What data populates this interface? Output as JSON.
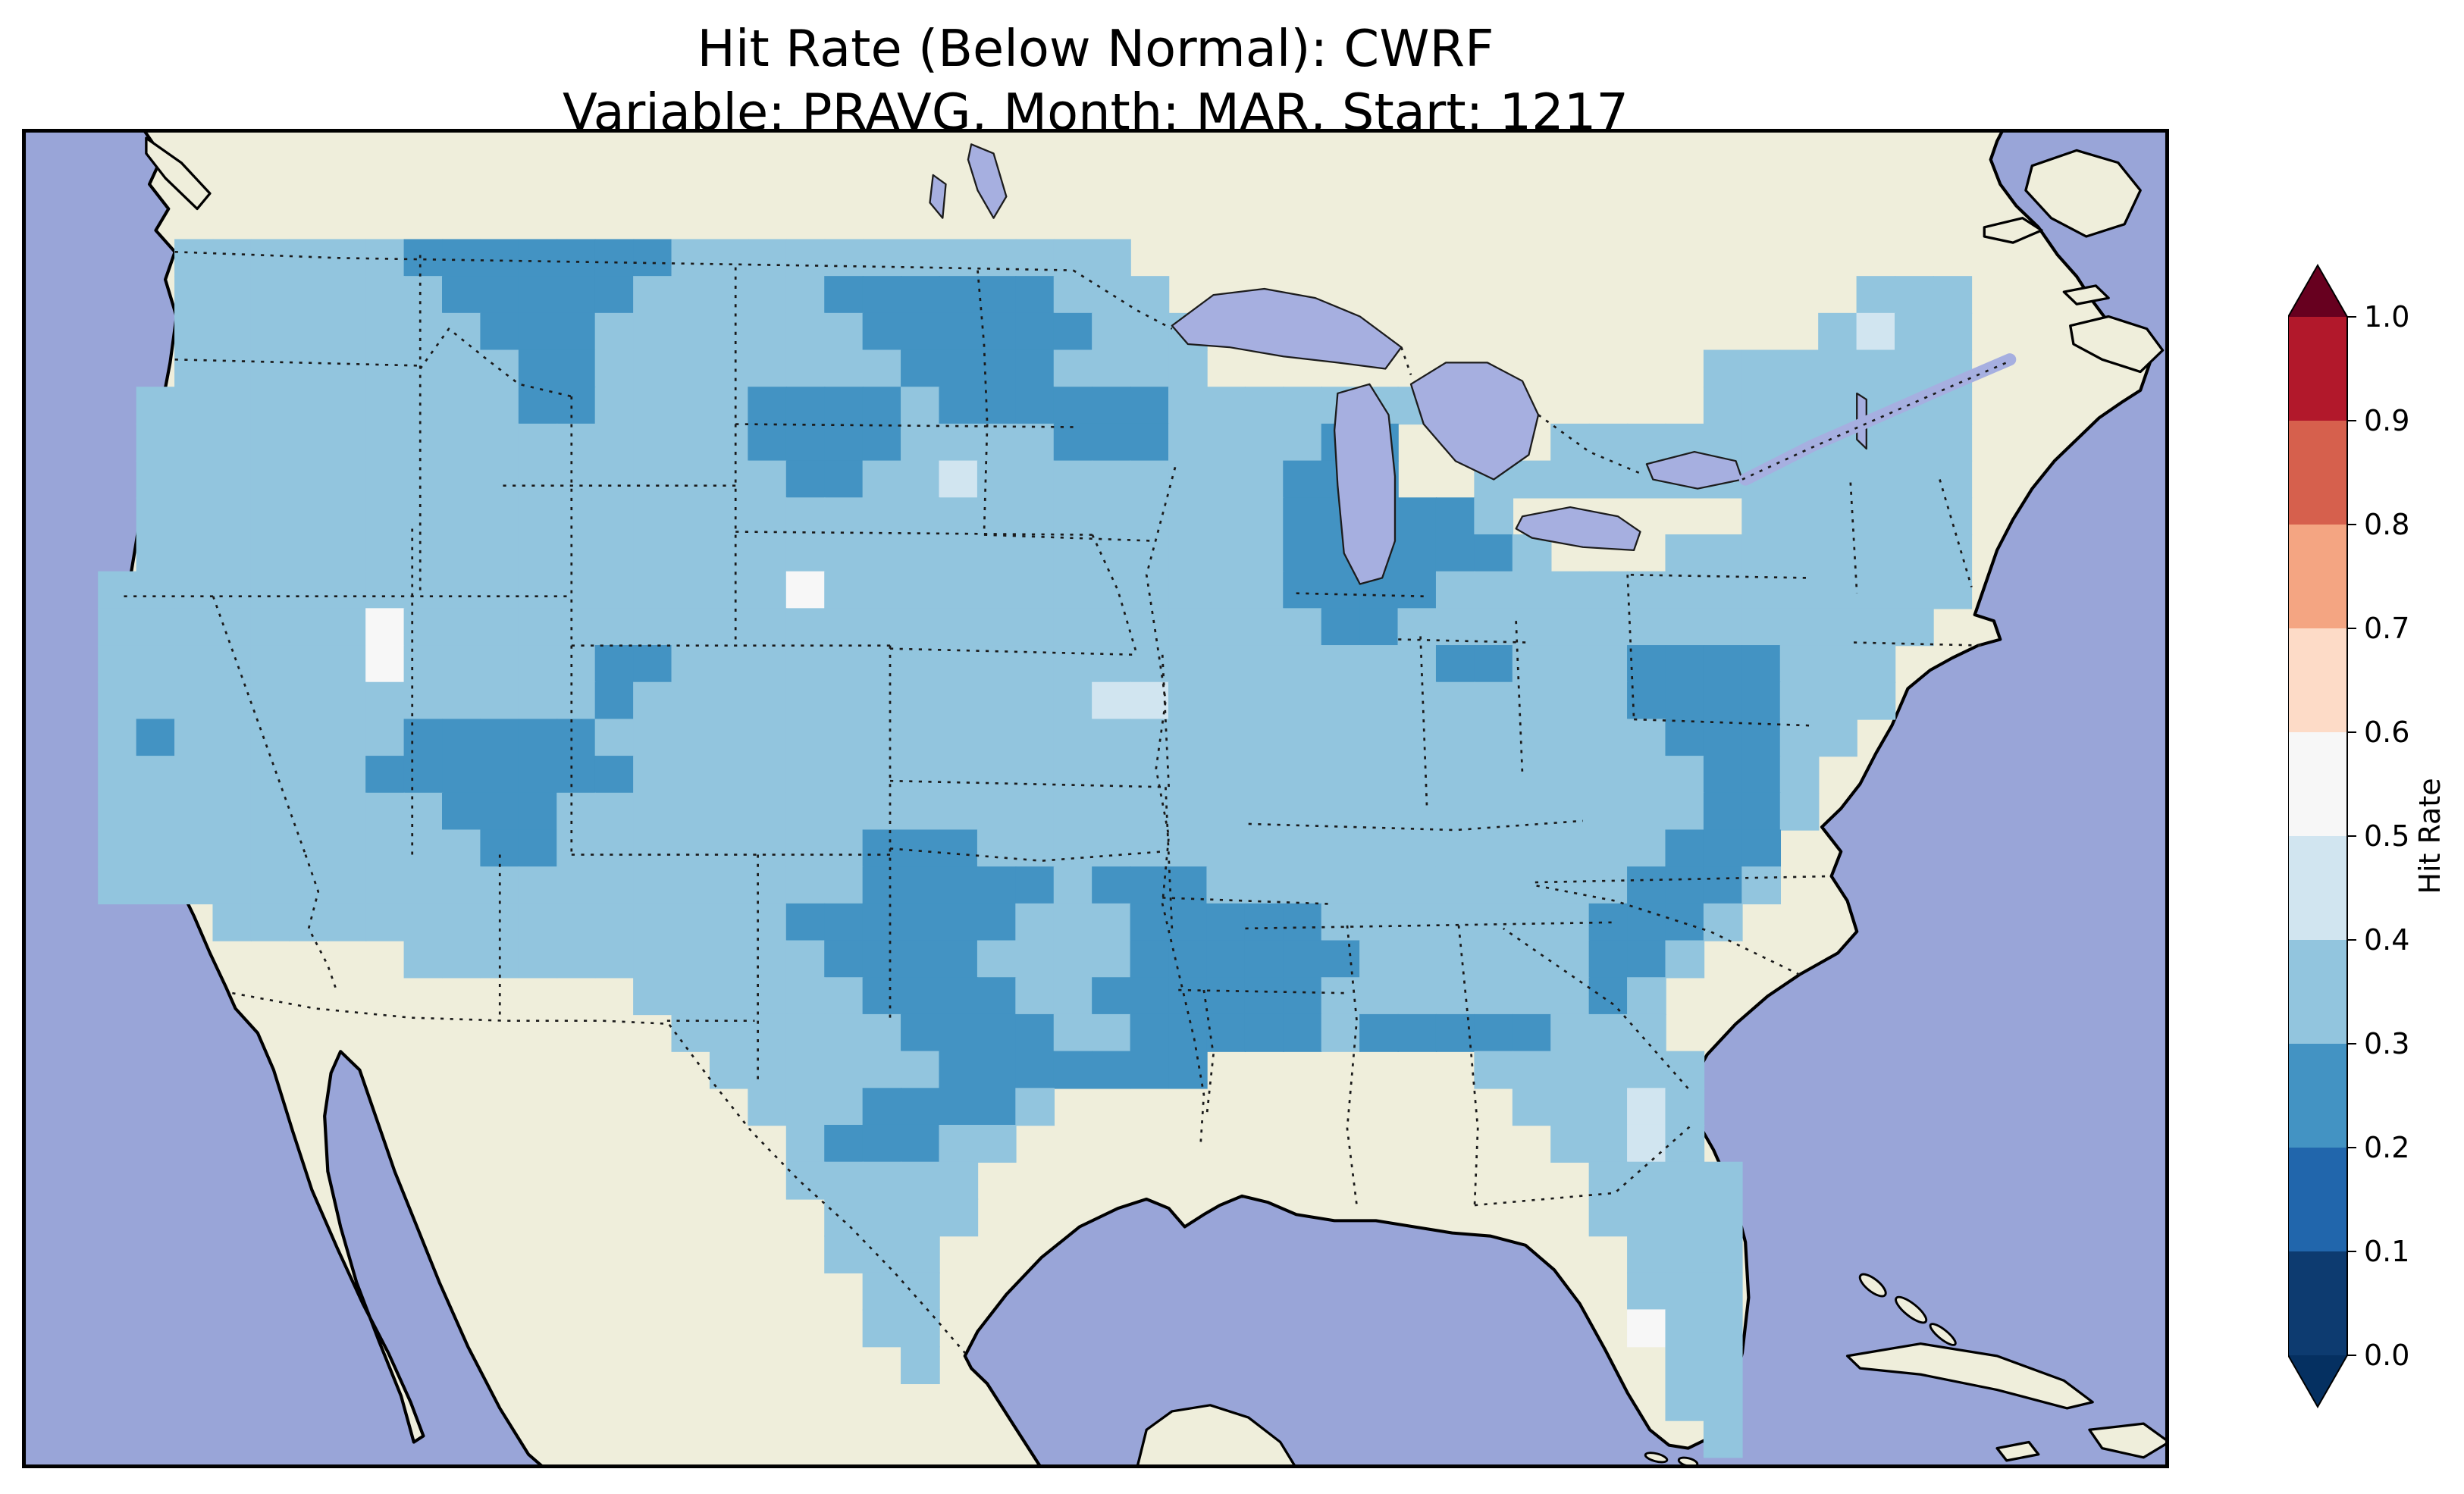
{
  "title": {
    "line1": "Hit Rate (Below Normal): CWRF",
    "line2": "Variable: PRAVG, Month: MAR, Start: 1217"
  },
  "colorbar": {
    "label": "Hit Rate",
    "tick_labels": [
      "0.0",
      "0.1",
      "0.2",
      "0.3",
      "0.4",
      "0.5",
      "0.6",
      "0.7",
      "0.8",
      "0.9",
      "1.0"
    ]
  },
  "map_colors": {
    "ocean": "#99a5d8",
    "land": "#efeedb",
    "lakes": "#a6afe0",
    "coastline": "#000000"
  },
  "chart_data": {
    "type": "heatmap",
    "title": "Hit Rate (Below Normal): CWRF",
    "subtitle": "Variable: PRAVG, Month: MAR, Start: 1217",
    "model": "CWRF",
    "variable": "PRAVG",
    "month": "MAR",
    "start": "1217",
    "metric": "Hit Rate (Below Normal)",
    "region": "Contiguous United States",
    "colorbar_label": "Hit Rate",
    "value_range": [
      0.0,
      1.0
    ],
    "colormap": "RdBu discrete, 0.1 steps, extended both ends",
    "color_scale": {
      "under_color": "#053061",
      "over_color": "#67001f",
      "bins": [
        {
          "from": 0.0,
          "to": 0.1,
          "color": "#0d3b70"
        },
        {
          "from": 0.1,
          "to": 0.2,
          "color": "#2166ac"
        },
        {
          "from": 0.2,
          "to": 0.3,
          "color": "#4393c3"
        },
        {
          "from": 0.3,
          "to": 0.4,
          "color": "#92c5de"
        },
        {
          "from": 0.4,
          "to": 0.5,
          "color": "#d1e5f0"
        },
        {
          "from": 0.5,
          "to": 0.6,
          "color": "#f7f7f7"
        },
        {
          "from": 0.6,
          "to": 0.7,
          "color": "#fddbc7"
        },
        {
          "from": 0.7,
          "to": 0.8,
          "color": "#f4a582"
        },
        {
          "from": 0.8,
          "to": 0.9,
          "color": "#d6604d"
        },
        {
          "from": 0.9,
          "to": 1.0,
          "color": "#b2182b"
        }
      ]
    },
    "summary": "Hit rates over CONUS are mostly 0.3-0.4 (light blue) with scattered 0.2-0.3 patches (medium blue) over the northern Rockies/Montana, northern Minnesota, Wisconsin/Lake Michigan shores, Ohio, the Virginia Appalachians, the Carolina-Georgia coastal plain, Arizona/New Mexico, central and southern Texas and the central Gulf Coast; a few isolated 0.4-0.6 cells (pale/white) occur in Nevada, the central Plains, Maine and Florida.",
    "grid": {
      "cell_size": 24,
      "cols": 56,
      "rows_total": 36,
      "bin_by_symbol": {
        "2": "0.2-0.3",
        "3": "0.3-0.4",
        "4": "0.4-0.5",
        "5": "0.5-0.6"
      },
      "color_by_symbol": {
        "2": "#4393c3",
        "3": "#92c5de",
        "4": "#d1e5f0",
        "5": "#f7f7f7"
      },
      "rows": [
        {
          "r": 3,
          "runs": [
            [
              4,
              6,
              "3"
            ],
            [
              10,
              7,
              "2"
            ],
            [
              17,
              12,
              "3"
            ]
          ]
        },
        {
          "r": 4,
          "runs": [
            [
              4,
              7,
              "3"
            ],
            [
              11,
              5,
              "2"
            ],
            [
              16,
              5,
              "3"
            ],
            [
              21,
              6,
              "2"
            ],
            [
              27,
              3,
              "3"
            ],
            [
              48,
              3,
              "3"
            ]
          ]
        },
        {
          "r": 5,
          "runs": [
            [
              4,
              8,
              "3"
            ],
            [
              12,
              3,
              "2"
            ],
            [
              15,
              7,
              "3"
            ],
            [
              22,
              6,
              "2"
            ],
            [
              28,
              3,
              "3"
            ],
            [
              47,
              1,
              "3"
            ],
            [
              48,
              1,
              "4"
            ],
            [
              49,
              2,
              "3"
            ]
          ]
        },
        {
          "r": 6,
          "runs": [
            [
              4,
              9,
              "3"
            ],
            [
              13,
              2,
              "2"
            ],
            [
              15,
              8,
              "3"
            ],
            [
              23,
              4,
              "2"
            ],
            [
              27,
              4,
              "3"
            ],
            [
              44,
              7,
              "3"
            ]
          ]
        },
        {
          "r": 7,
          "runs": [
            [
              3,
              10,
              "3"
            ],
            [
              13,
              2,
              "2"
            ],
            [
              15,
              4,
              "3"
            ],
            [
              19,
              4,
              "2"
            ],
            [
              23,
              1,
              "3"
            ],
            [
              24,
              6,
              "2"
            ],
            [
              30,
              7,
              "3"
            ],
            [
              44,
              7,
              "3"
            ]
          ]
        },
        {
          "r": 8,
          "runs": [
            [
              3,
              16,
              "3"
            ],
            [
              19,
              4,
              "2"
            ],
            [
              23,
              4,
              "3"
            ],
            [
              27,
              3,
              "2"
            ],
            [
              30,
              4,
              "3"
            ],
            [
              34,
              2,
              "2"
            ],
            [
              40,
              11,
              "3"
            ]
          ]
        },
        {
          "r": 9,
          "runs": [
            [
              3,
              17,
              "3"
            ],
            [
              20,
              2,
              "2"
            ],
            [
              22,
              2,
              "3"
            ],
            [
              24,
              1,
              "4"
            ],
            [
              25,
              8,
              "3"
            ],
            [
              33,
              3,
              "2"
            ],
            [
              38,
              13,
              "3"
            ]
          ]
        },
        {
          "r": 10,
          "runs": [
            [
              3,
              30,
              "3"
            ],
            [
              33,
              5,
              "2"
            ],
            [
              38,
              1,
              "3"
            ],
            [
              45,
              6,
              "3"
            ]
          ]
        },
        {
          "r": 11,
          "runs": [
            [
              3,
              30,
              "3"
            ],
            [
              33,
              6,
              "2"
            ],
            [
              39,
              1,
              "3"
            ],
            [
              43,
              8,
              "3"
            ]
          ]
        },
        {
          "r": 12,
          "runs": [
            [
              2,
              18,
              "3"
            ],
            [
              20,
              1,
              "5"
            ],
            [
              21,
              12,
              "3"
            ],
            [
              33,
              4,
              "2"
            ],
            [
              37,
              14,
              "3"
            ]
          ]
        },
        {
          "r": 13,
          "runs": [
            [
              2,
              7,
              "3"
            ],
            [
              9,
              1,
              "5"
            ],
            [
              10,
              24,
              "3"
            ],
            [
              34,
              2,
              "2"
            ],
            [
              36,
              14,
              "3"
            ]
          ]
        },
        {
          "r": 14,
          "runs": [
            [
              2,
              7,
              "3"
            ],
            [
              9,
              1,
              "5"
            ],
            [
              10,
              5,
              "3"
            ],
            [
              15,
              2,
              "2"
            ],
            [
              17,
              20,
              "3"
            ],
            [
              37,
              2,
              "2"
            ],
            [
              39,
              3,
              "3"
            ],
            [
              42,
              4,
              "2"
            ],
            [
              46,
              3,
              "3"
            ]
          ]
        },
        {
          "r": 15,
          "runs": [
            [
              2,
              13,
              "3"
            ],
            [
              15,
              1,
              "2"
            ],
            [
              16,
              12,
              "3"
            ],
            [
              28,
              2,
              "4"
            ],
            [
              30,
              12,
              "3"
            ],
            [
              42,
              4,
              "2"
            ],
            [
              46,
              3,
              "3"
            ]
          ]
        },
        {
          "r": 16,
          "runs": [
            [
              2,
              1,
              "3"
            ],
            [
              3,
              1,
              "2"
            ],
            [
              4,
              6,
              "3"
            ],
            [
              10,
              5,
              "2"
            ],
            [
              15,
              28,
              "3"
            ],
            [
              43,
              3,
              "2"
            ],
            [
              46,
              2,
              "3"
            ]
          ]
        },
        {
          "r": 17,
          "runs": [
            [
              2,
              7,
              "3"
            ],
            [
              9,
              7,
              "2"
            ],
            [
              16,
              28,
              "3"
            ],
            [
              44,
              2,
              "2"
            ],
            [
              46,
              1,
              "3"
            ]
          ]
        },
        {
          "r": 18,
          "runs": [
            [
              2,
              9,
              "3"
            ],
            [
              11,
              3,
              "2"
            ],
            [
              14,
              30,
              "3"
            ],
            [
              44,
              2,
              "2"
            ],
            [
              46,
              1,
              "3"
            ]
          ]
        },
        {
          "r": 19,
          "runs": [
            [
              2,
              10,
              "3"
            ],
            [
              12,
              2,
              "2"
            ],
            [
              14,
              8,
              "3"
            ],
            [
              22,
              3,
              "2"
            ],
            [
              25,
              18,
              "3"
            ],
            [
              43,
              3,
              "2"
            ]
          ]
        },
        {
          "r": 20,
          "runs": [
            [
              2,
              20,
              "3"
            ],
            [
              22,
              5,
              "2"
            ],
            [
              27,
              1,
              "3"
            ],
            [
              28,
              3,
              "2"
            ],
            [
              31,
              11,
              "3"
            ],
            [
              42,
              3,
              "2"
            ],
            [
              45,
              1,
              "3"
            ]
          ]
        },
        {
          "r": 21,
          "runs": [
            [
              5,
              15,
              "3"
            ],
            [
              20,
              6,
              "2"
            ],
            [
              26,
              3,
              "3"
            ],
            [
              29,
              5,
              "2"
            ],
            [
              34,
              7,
              "3"
            ],
            [
              41,
              3,
              "2"
            ],
            [
              44,
              1,
              "3"
            ]
          ]
        },
        {
          "r": 22,
          "runs": [
            [
              10,
              11,
              "3"
            ],
            [
              21,
              4,
              "2"
            ],
            [
              25,
              4,
              "3"
            ],
            [
              29,
              6,
              "2"
            ],
            [
              35,
              6,
              "3"
            ],
            [
              41,
              2,
              "2"
            ],
            [
              43,
              1,
              "3"
            ]
          ]
        },
        {
          "r": 23,
          "runs": [
            [
              16,
              6,
              "3"
            ],
            [
              22,
              4,
              "2"
            ],
            [
              26,
              2,
              "3"
            ],
            [
              28,
              6,
              "2"
            ],
            [
              34,
              7,
              "3"
            ],
            [
              41,
              1,
              "2"
            ],
            [
              42,
              1,
              "3"
            ]
          ]
        },
        {
          "r": 24,
          "runs": [
            [
              17,
              6,
              "3"
            ],
            [
              23,
              4,
              "2"
            ],
            [
              27,
              2,
              "3"
            ],
            [
              29,
              5,
              "2"
            ],
            [
              34,
              1,
              "3"
            ],
            [
              35,
              5,
              "2"
            ],
            [
              40,
              3,
              "3"
            ]
          ]
        },
        {
          "r": 25,
          "runs": [
            [
              18,
              6,
              "3"
            ],
            [
              24,
              7,
              "2"
            ],
            [
              38,
              6,
              "3"
            ]
          ]
        },
        {
          "r": 26,
          "runs": [
            [
              19,
              3,
              "3"
            ],
            [
              22,
              4,
              "2"
            ],
            [
              26,
              1,
              "3"
            ],
            [
              39,
              3,
              "3"
            ],
            [
              42,
              1,
              "4"
            ],
            [
              43,
              1,
              "3"
            ]
          ]
        },
        {
          "r": 27,
          "runs": [
            [
              20,
              1,
              "3"
            ],
            [
              21,
              3,
              "2"
            ],
            [
              24,
              2,
              "3"
            ],
            [
              40,
              2,
              "3"
            ],
            [
              42,
              1,
              "4"
            ],
            [
              43,
              1,
              "3"
            ]
          ]
        },
        {
          "r": 28,
          "runs": [
            [
              20,
              5,
              "3"
            ],
            [
              41,
              4,
              "3"
            ]
          ]
        },
        {
          "r": 29,
          "runs": [
            [
              21,
              4,
              "3"
            ],
            [
              41,
              4,
              "3"
            ]
          ]
        },
        {
          "r": 30,
          "runs": [
            [
              21,
              3,
              "3"
            ],
            [
              42,
              3,
              "3"
            ]
          ]
        },
        {
          "r": 31,
          "runs": [
            [
              22,
              2,
              "3"
            ],
            [
              42,
              3,
              "3"
            ]
          ]
        },
        {
          "r": 32,
          "runs": [
            [
              22,
              2,
              "3"
            ],
            [
              42,
              1,
              "5"
            ],
            [
              43,
              2,
              "3"
            ]
          ]
        },
        {
          "r": 33,
          "runs": [
            [
              23,
              1,
              "3"
            ],
            [
              43,
              2,
              "3"
            ]
          ]
        },
        {
          "r": 34,
          "runs": [
            [
              43,
              2,
              "3"
            ]
          ]
        },
        {
          "r": 35,
          "runs": [
            [
              44,
              1,
              "3"
            ]
          ]
        }
      ]
    }
  }
}
